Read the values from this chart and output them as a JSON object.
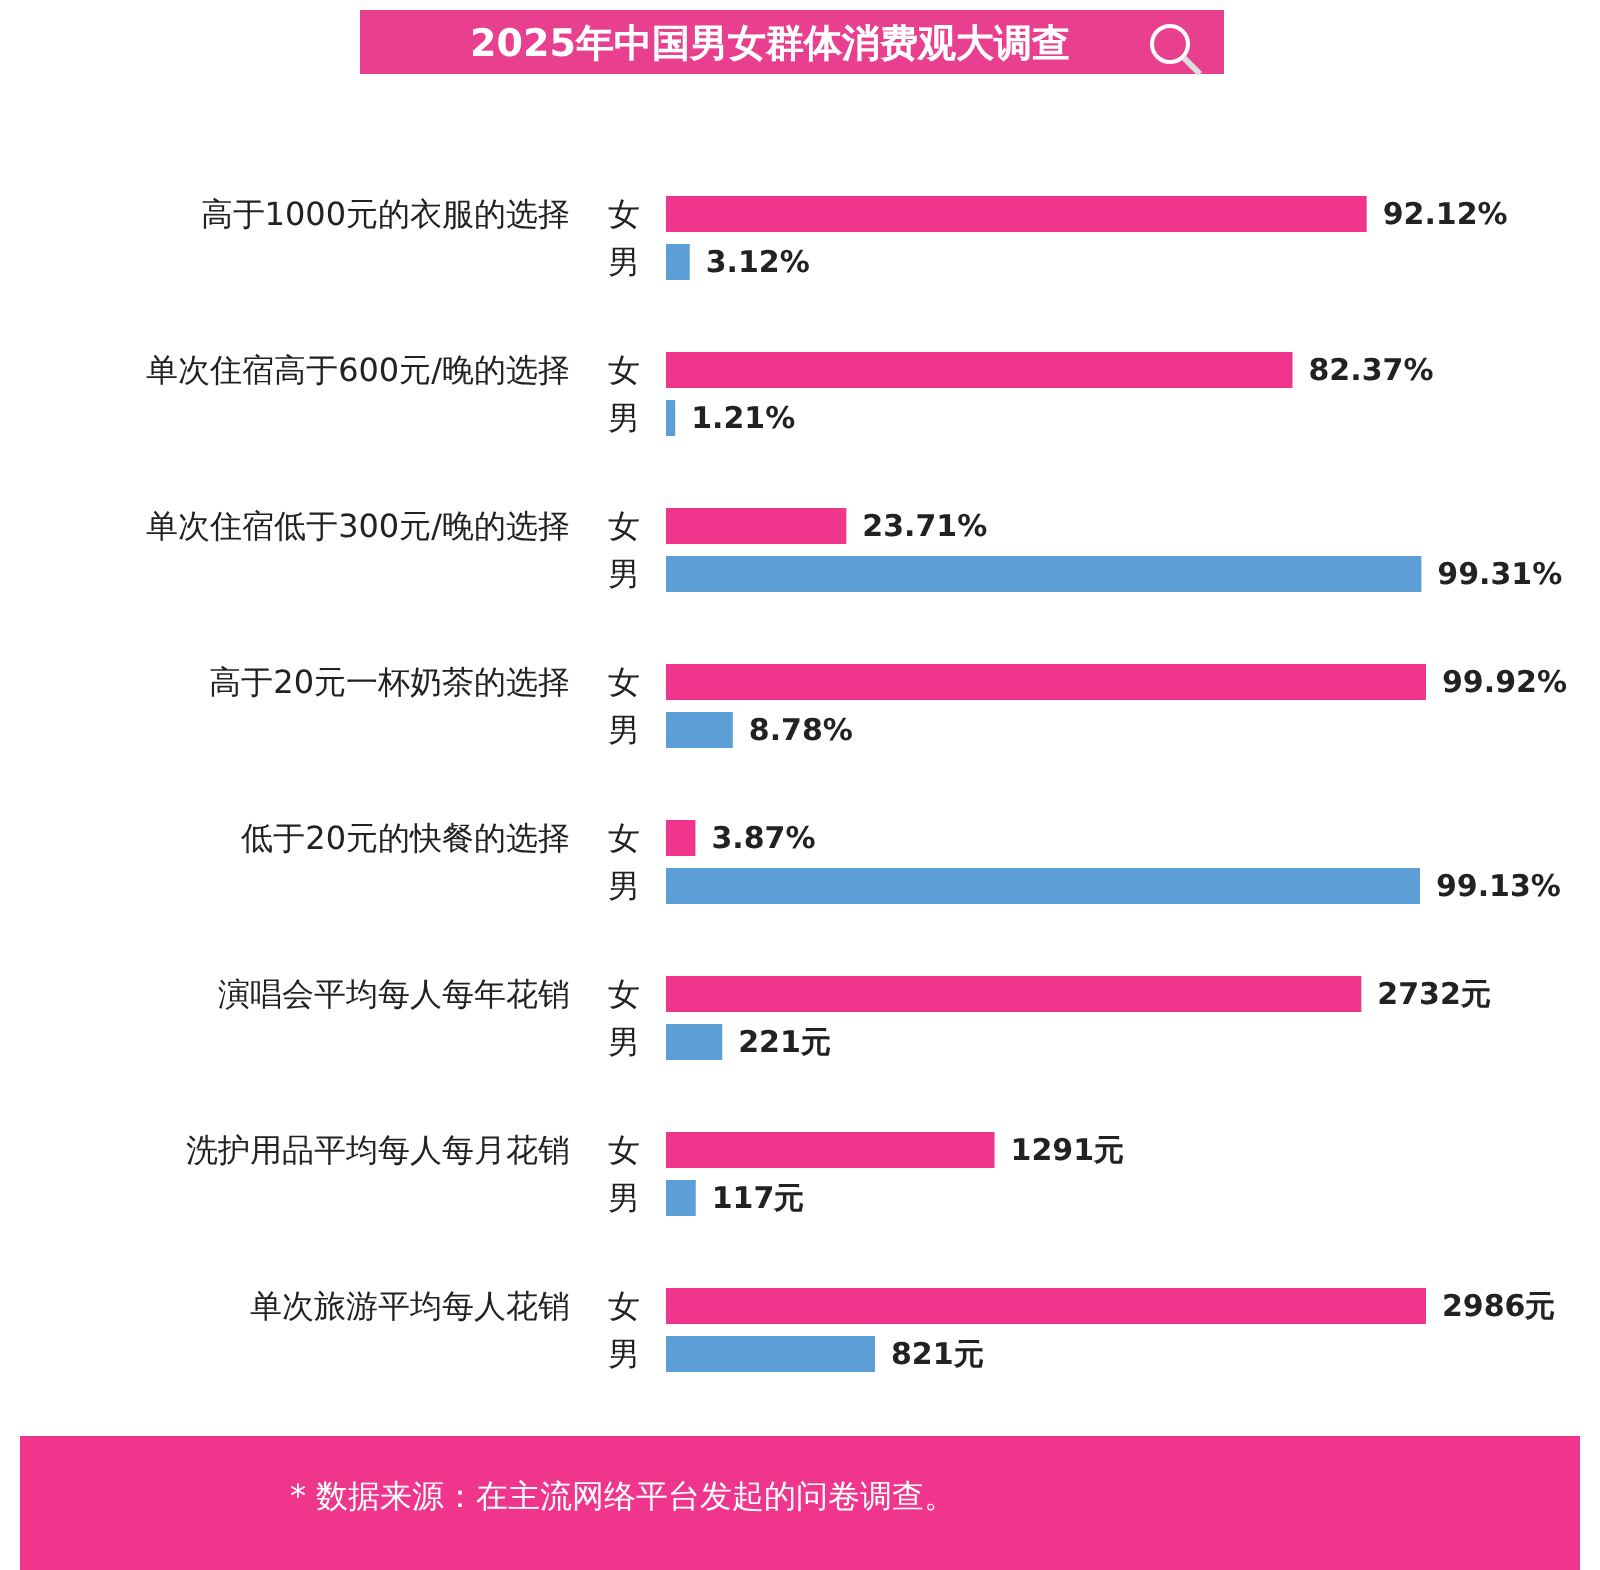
{
  "chart_data": [
    {
      "type": "bar",
      "orientation": "horizontal",
      "title": "2025年中国男女群体消费观大调查",
      "tick_labels": "y",
      "categories": [
        "高于1000元的衣服的选择",
        "单次住宿高于600元/晚的选择",
        "单次住宿低于300元/晚的选择",
        "高于20元一杯奶茶的选择",
        "低于20元的快餐的选择"
      ],
      "series": [
        {
          "name": "女",
          "color": "#f0368c",
          "values": [
            92.12,
            82.37,
            23.71,
            99.92,
            3.87
          ],
          "value_labels": [
            "92.12%",
            "82.37%",
            "23.71%",
            "99.92%",
            "3.87%"
          ]
        },
        {
          "name": "男",
          "color": "#5b9fd6",
          "values": [
            3.12,
            1.21,
            99.31,
            8.78,
            99.13
          ],
          "value_labels": [
            "3.12%",
            "1.21%",
            "99.31%",
            "8.78%",
            "99.13%"
          ]
        }
      ]
    },
    {
      "type": "bar",
      "orientation": "horizontal",
      "tick_labels": "y",
      "categories": [
        "演唱会平均每人每年花销",
        "洗护用品平均每人每月花销",
        "单次旅游平均每人花销"
      ],
      "series": [
        {
          "name": "女",
          "color": "#f0368c",
          "values": [
            2732,
            1291,
            2986
          ],
          "value_labels": [
            "2732元",
            "1291元",
            "2986元"
          ]
        },
        {
          "name": "男",
          "color": "#5b9fd6",
          "values": [
            221,
            117,
            821
          ],
          "value_labels": [
            "221元",
            "117元",
            "821元"
          ]
        }
      ],
      "annotations": [
        "* 数据来源：在主流网络平台发起的问卷调查。"
      ]
    }
  ]
}
